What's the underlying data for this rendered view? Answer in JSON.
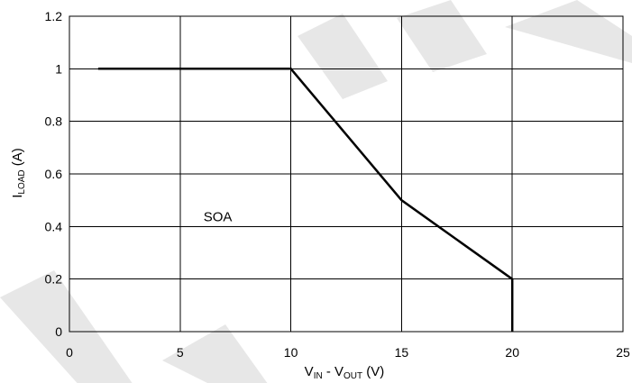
{
  "chart_data": {
    "type": "line",
    "title": "",
    "xlabel": {
      "main": "V",
      "sub1": "IN",
      "mid": " - V",
      "sub2": "OUT",
      "end": " (V)"
    },
    "ylabel": {
      "main": "I",
      "sub": "LOAD",
      "end": " (A)"
    },
    "xlim": [
      0,
      25
    ],
    "ylim": [
      0,
      1.2
    ],
    "x_ticks": [
      0,
      5,
      10,
      15,
      20,
      25
    ],
    "x_tick_labels": [
      "0",
      "5",
      "10",
      "15",
      "20",
      "25"
    ],
    "y_ticks": [
      0,
      0.2,
      0.4,
      0.6,
      0.8,
      1,
      1.2
    ],
    "y_tick_labels": [
      "0",
      "0.2",
      "0.4",
      "0.6",
      "0.8",
      "1",
      "1.2"
    ],
    "grid": true,
    "legend": "none",
    "series": [
      {
        "points": [
          {
            "x": 1.3,
            "y": 1.0
          },
          {
            "x": 10,
            "y": 1.0
          },
          {
            "x": 15,
            "y": 0.5
          },
          {
            "x": 20,
            "y": 0.2
          },
          {
            "x": 20,
            "y": 0
          }
        ],
        "color": "#000000"
      }
    ],
    "annotations": [
      {
        "text": "SOA",
        "x": 6.7,
        "y": 0.42
      }
    ]
  }
}
